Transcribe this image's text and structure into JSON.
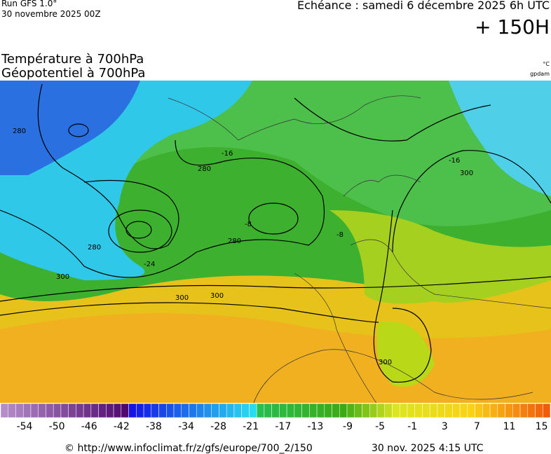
{
  "header": {
    "run": "Run GFS 1.0°",
    "run_date": "30 novembre 2025 00Z",
    "valid": "Echéance : samedi 6 décembre 2025 6h UTC",
    "lead": "+ 150H",
    "title_1": "Température à 700hPa",
    "title_2": "Géopotentiel à 700hPa",
    "unit_1": "°C",
    "unit_2": "gpdam"
  },
  "map": {
    "contour_labels": [
      "280",
      "280",
      "280",
      "300",
      "300",
      "300",
      "300",
      "300",
      "280",
      "-16",
      "-16",
      "-24",
      "-8",
      "-8"
    ]
  },
  "legend": {
    "labels": [
      "-54",
      "-50",
      "-46",
      "-42",
      "-38",
      "-34",
      "-28",
      "-21",
      "-17",
      "-13",
      "-9",
      "-5",
      "-1",
      "3",
      "7",
      "11",
      "15"
    ]
  },
  "footer": {
    "source": "© http://www.infoclimat.fr/z/gfs/europe/700_2/150",
    "generated": "30 nov. 2025  4:15 UTC"
  }
}
